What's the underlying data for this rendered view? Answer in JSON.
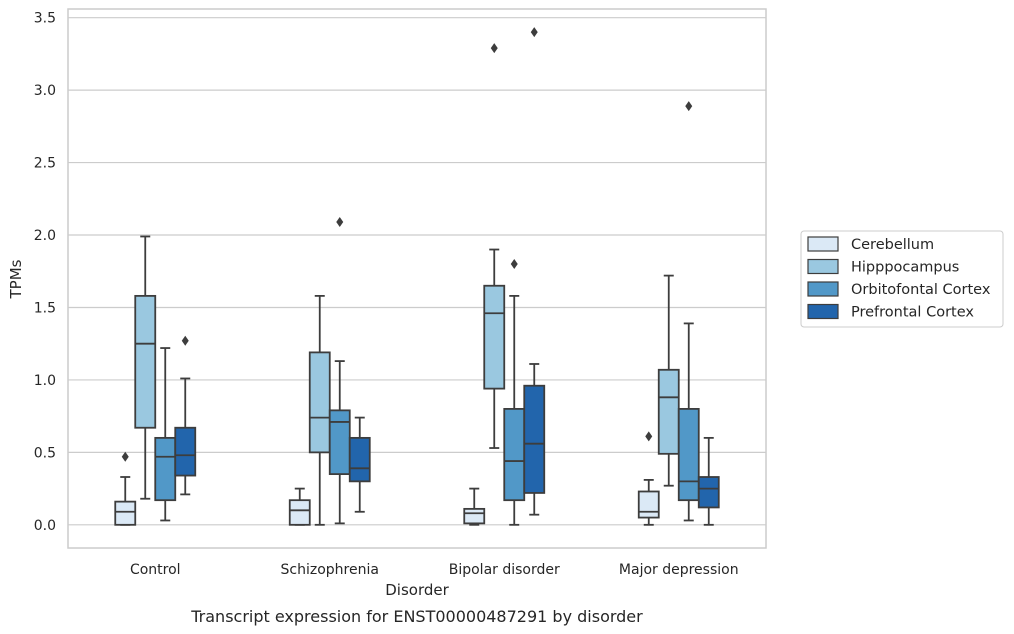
{
  "chart_data": {
    "type": "box",
    "categories": [
      "Control",
      "Schizophrenia",
      "Bipolar disorder",
      "Major depression"
    ],
    "xlabel": "Disorder",
    "ylabel": "TPMs",
    "caption": "Transcript expression for ENST00000487291 by disorder",
    "ylim": [
      -0.16,
      3.56
    ],
    "yticks": [
      "0.0",
      "0.5",
      "1.0",
      "1.5",
      "2.0",
      "2.5",
      "3.0",
      "3.5"
    ],
    "grid": "horizontal",
    "legend_position": "right",
    "series": [
      {
        "name": "Cerebellum",
        "color": "#dbe9f6",
        "boxes": [
          {
            "whisker_low": 0.0,
            "q1": 0.0,
            "median": 0.09,
            "q3": 0.16,
            "whisker_high": 0.33,
            "outliers": [
              0.47
            ]
          },
          {
            "whisker_low": 0.0,
            "q1": 0.0,
            "median": 0.1,
            "q3": 0.17,
            "whisker_high": 0.25,
            "outliers": []
          },
          {
            "whisker_low": 0.0,
            "q1": 0.01,
            "median": 0.08,
            "q3": 0.11,
            "whisker_high": 0.25,
            "outliers": []
          },
          {
            "whisker_low": 0.0,
            "q1": 0.05,
            "median": 0.09,
            "q3": 0.23,
            "whisker_high": 0.31,
            "outliers": [
              0.61
            ]
          }
        ]
      },
      {
        "name": "Hipppocampus",
        "color": "#9ac8e0",
        "boxes": [
          {
            "whisker_low": 0.18,
            "q1": 0.67,
            "median": 1.25,
            "q3": 1.58,
            "whisker_high": 1.99,
            "outliers": []
          },
          {
            "whisker_low": 0.0,
            "q1": 0.5,
            "median": 0.74,
            "q3": 1.19,
            "whisker_high": 1.58,
            "outliers": []
          },
          {
            "whisker_low": 0.53,
            "q1": 0.94,
            "median": 1.46,
            "q3": 1.65,
            "whisker_high": 1.9,
            "outliers": [
              3.29
            ]
          },
          {
            "whisker_low": 0.27,
            "q1": 0.49,
            "median": 0.88,
            "q3": 1.07,
            "whisker_high": 1.72,
            "outliers": []
          }
        ]
      },
      {
        "name": "Orbitofontal Cortex",
        "color": "#5198c8",
        "boxes": [
          {
            "whisker_low": 0.03,
            "q1": 0.17,
            "median": 0.47,
            "q3": 0.6,
            "whisker_high": 1.22,
            "outliers": []
          },
          {
            "whisker_low": 0.01,
            "q1": 0.35,
            "median": 0.71,
            "q3": 0.79,
            "whisker_high": 1.13,
            "outliers": [
              2.09
            ]
          },
          {
            "whisker_low": 0.0,
            "q1": 0.17,
            "median": 0.44,
            "q3": 0.8,
            "whisker_high": 1.58,
            "outliers": [
              1.8
            ]
          },
          {
            "whisker_low": 0.03,
            "q1": 0.17,
            "median": 0.3,
            "q3": 0.8,
            "whisker_high": 1.39,
            "outliers": [
              2.89
            ]
          }
        ]
      },
      {
        "name": "Prefrontal Cortex",
        "color": "#2265ac",
        "boxes": [
          {
            "whisker_low": 0.21,
            "q1": 0.34,
            "median": 0.48,
            "q3": 0.67,
            "whisker_high": 1.01,
            "outliers": [
              1.27
            ]
          },
          {
            "whisker_low": 0.09,
            "q1": 0.3,
            "median": 0.39,
            "q3": 0.6,
            "whisker_high": 0.74,
            "outliers": []
          },
          {
            "whisker_low": 0.07,
            "q1": 0.22,
            "median": 0.56,
            "q3": 0.96,
            "whisker_high": 1.11,
            "outliers": [
              3.4
            ]
          },
          {
            "whisker_low": 0.0,
            "q1": 0.12,
            "median": 0.25,
            "q3": 0.33,
            "whisker_high": 0.6,
            "outliers": []
          }
        ]
      }
    ]
  }
}
